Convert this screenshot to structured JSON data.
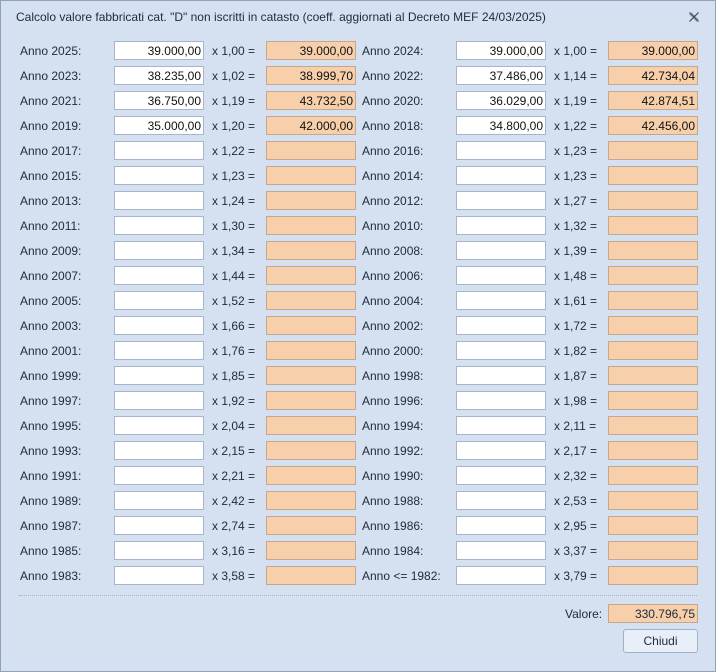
{
  "window": {
    "title": "Calcolo valore fabbricati cat. \"D\" non iscritti in catasto (coeff. aggiornati al Decreto MEF 24/03/2025)"
  },
  "rows": [
    {
      "left": {
        "label": "Anno 2025:",
        "value": "39.000,00",
        "coef": "x 1,00 =",
        "result": "39.000,00"
      },
      "right": {
        "label": "Anno 2024:",
        "value": "39.000,00",
        "coef": "x 1,00 =",
        "result": "39.000,00"
      }
    },
    {
      "left": {
        "label": "Anno 2023:",
        "value": "38.235,00",
        "coef": "x 1,02 =",
        "result": "38.999,70"
      },
      "right": {
        "label": "Anno 2022:",
        "value": "37.486,00",
        "coef": "x 1,14 =",
        "result": "42.734,04"
      }
    },
    {
      "left": {
        "label": "Anno 2021:",
        "value": "36.750,00",
        "coef": "x 1,19 =",
        "result": "43.732,50"
      },
      "right": {
        "label": "Anno 2020:",
        "value": "36.029,00",
        "coef": "x 1,19 =",
        "result": "42.874,51"
      }
    },
    {
      "left": {
        "label": "Anno 2019:",
        "value": "35.000,00",
        "coef": "x 1,20 =",
        "result": "42.000,00"
      },
      "right": {
        "label": "Anno 2018:",
        "value": "34.800,00",
        "coef": "x 1,22 =",
        "result": "42.456,00"
      }
    },
    {
      "left": {
        "label": "Anno 2017:",
        "value": "",
        "coef": "x 1,22 =",
        "result": ""
      },
      "right": {
        "label": "Anno 2016:",
        "value": "",
        "coef": "x 1,23 =",
        "result": ""
      }
    },
    {
      "left": {
        "label": "Anno 2015:",
        "value": "",
        "coef": "x 1,23 =",
        "result": ""
      },
      "right": {
        "label": "Anno 2014:",
        "value": "",
        "coef": "x 1,23 =",
        "result": ""
      }
    },
    {
      "left": {
        "label": "Anno 2013:",
        "value": "",
        "coef": "x 1,24 =",
        "result": ""
      },
      "right": {
        "label": "Anno 2012:",
        "value": "",
        "coef": "x 1,27 =",
        "result": ""
      }
    },
    {
      "left": {
        "label": "Anno 2011:",
        "value": "",
        "coef": "x 1,30 =",
        "result": ""
      },
      "right": {
        "label": "Anno 2010:",
        "value": "",
        "coef": "x 1,32 =",
        "result": ""
      }
    },
    {
      "left": {
        "label": "Anno 2009:",
        "value": "",
        "coef": "x 1,34 =",
        "result": ""
      },
      "right": {
        "label": "Anno 2008:",
        "value": "",
        "coef": "x 1,39 =",
        "result": ""
      }
    },
    {
      "left": {
        "label": "Anno 2007:",
        "value": "",
        "coef": "x 1,44 =",
        "result": ""
      },
      "right": {
        "label": "Anno 2006:",
        "value": "",
        "coef": "x 1,48 =",
        "result": ""
      }
    },
    {
      "left": {
        "label": "Anno 2005:",
        "value": "",
        "coef": "x 1,52 =",
        "result": ""
      },
      "right": {
        "label": "Anno 2004:",
        "value": "",
        "coef": "x 1,61 =",
        "result": ""
      }
    },
    {
      "left": {
        "label": "Anno 2003:",
        "value": "",
        "coef": "x 1,66 =",
        "result": ""
      },
      "right": {
        "label": "Anno 2002:",
        "value": "",
        "coef": "x 1,72 =",
        "result": ""
      }
    },
    {
      "left": {
        "label": "Anno 2001:",
        "value": "",
        "coef": "x 1,76 =",
        "result": ""
      },
      "right": {
        "label": "Anno 2000:",
        "value": "",
        "coef": "x 1,82 =",
        "result": ""
      }
    },
    {
      "left": {
        "label": "Anno 1999:",
        "value": "",
        "coef": "x 1,85 =",
        "result": ""
      },
      "right": {
        "label": "Anno 1998:",
        "value": "",
        "coef": "x 1,87 =",
        "result": ""
      }
    },
    {
      "left": {
        "label": "Anno 1997:",
        "value": "",
        "coef": "x 1,92 =",
        "result": ""
      },
      "right": {
        "label": "Anno 1996:",
        "value": "",
        "coef": "x 1,98 =",
        "result": ""
      }
    },
    {
      "left": {
        "label": "Anno 1995:",
        "value": "",
        "coef": "x 2,04 =",
        "result": ""
      },
      "right": {
        "label": "Anno 1994:",
        "value": "",
        "coef": "x 2,11 =",
        "result": ""
      }
    },
    {
      "left": {
        "label": "Anno 1993:",
        "value": "",
        "coef": "x 2,15 =",
        "result": ""
      },
      "right": {
        "label": "Anno 1992:",
        "value": "",
        "coef": "x 2,17 =",
        "result": ""
      }
    },
    {
      "left": {
        "label": "Anno 1991:",
        "value": "",
        "coef": "x 2,21 =",
        "result": ""
      },
      "right": {
        "label": "Anno 1990:",
        "value": "",
        "coef": "x 2,32 =",
        "result": ""
      }
    },
    {
      "left": {
        "label": "Anno 1989:",
        "value": "",
        "coef": "x 2,42 =",
        "result": ""
      },
      "right": {
        "label": "Anno 1988:",
        "value": "",
        "coef": "x 2,53 =",
        "result": ""
      }
    },
    {
      "left": {
        "label": "Anno 1987:",
        "value": "",
        "coef": "x 2,74 =",
        "result": ""
      },
      "right": {
        "label": "Anno 1986:",
        "value": "",
        "coef": "x 2,95 =",
        "result": ""
      }
    },
    {
      "left": {
        "label": "Anno 1985:",
        "value": "",
        "coef": "x 3,16 =",
        "result": ""
      },
      "right": {
        "label": "Anno 1984:",
        "value": "",
        "coef": "x 3,37 =",
        "result": ""
      }
    },
    {
      "left": {
        "label": "Anno 1983:",
        "value": "",
        "coef": "x 3,58 =",
        "result": ""
      },
      "right": {
        "label": "Anno <= 1982:",
        "value": "",
        "coef": "x 3,79 =",
        "result": ""
      }
    }
  ],
  "footer": {
    "valore_label": "Valore:",
    "valore": "330.796,75",
    "close_button": "Chiudi"
  },
  "colors": {
    "window_bg": "#d5e1f0",
    "result_bg": "#f7cfab",
    "input_bg": "#ffffff"
  },
  "icons": {
    "close": "close-icon"
  }
}
